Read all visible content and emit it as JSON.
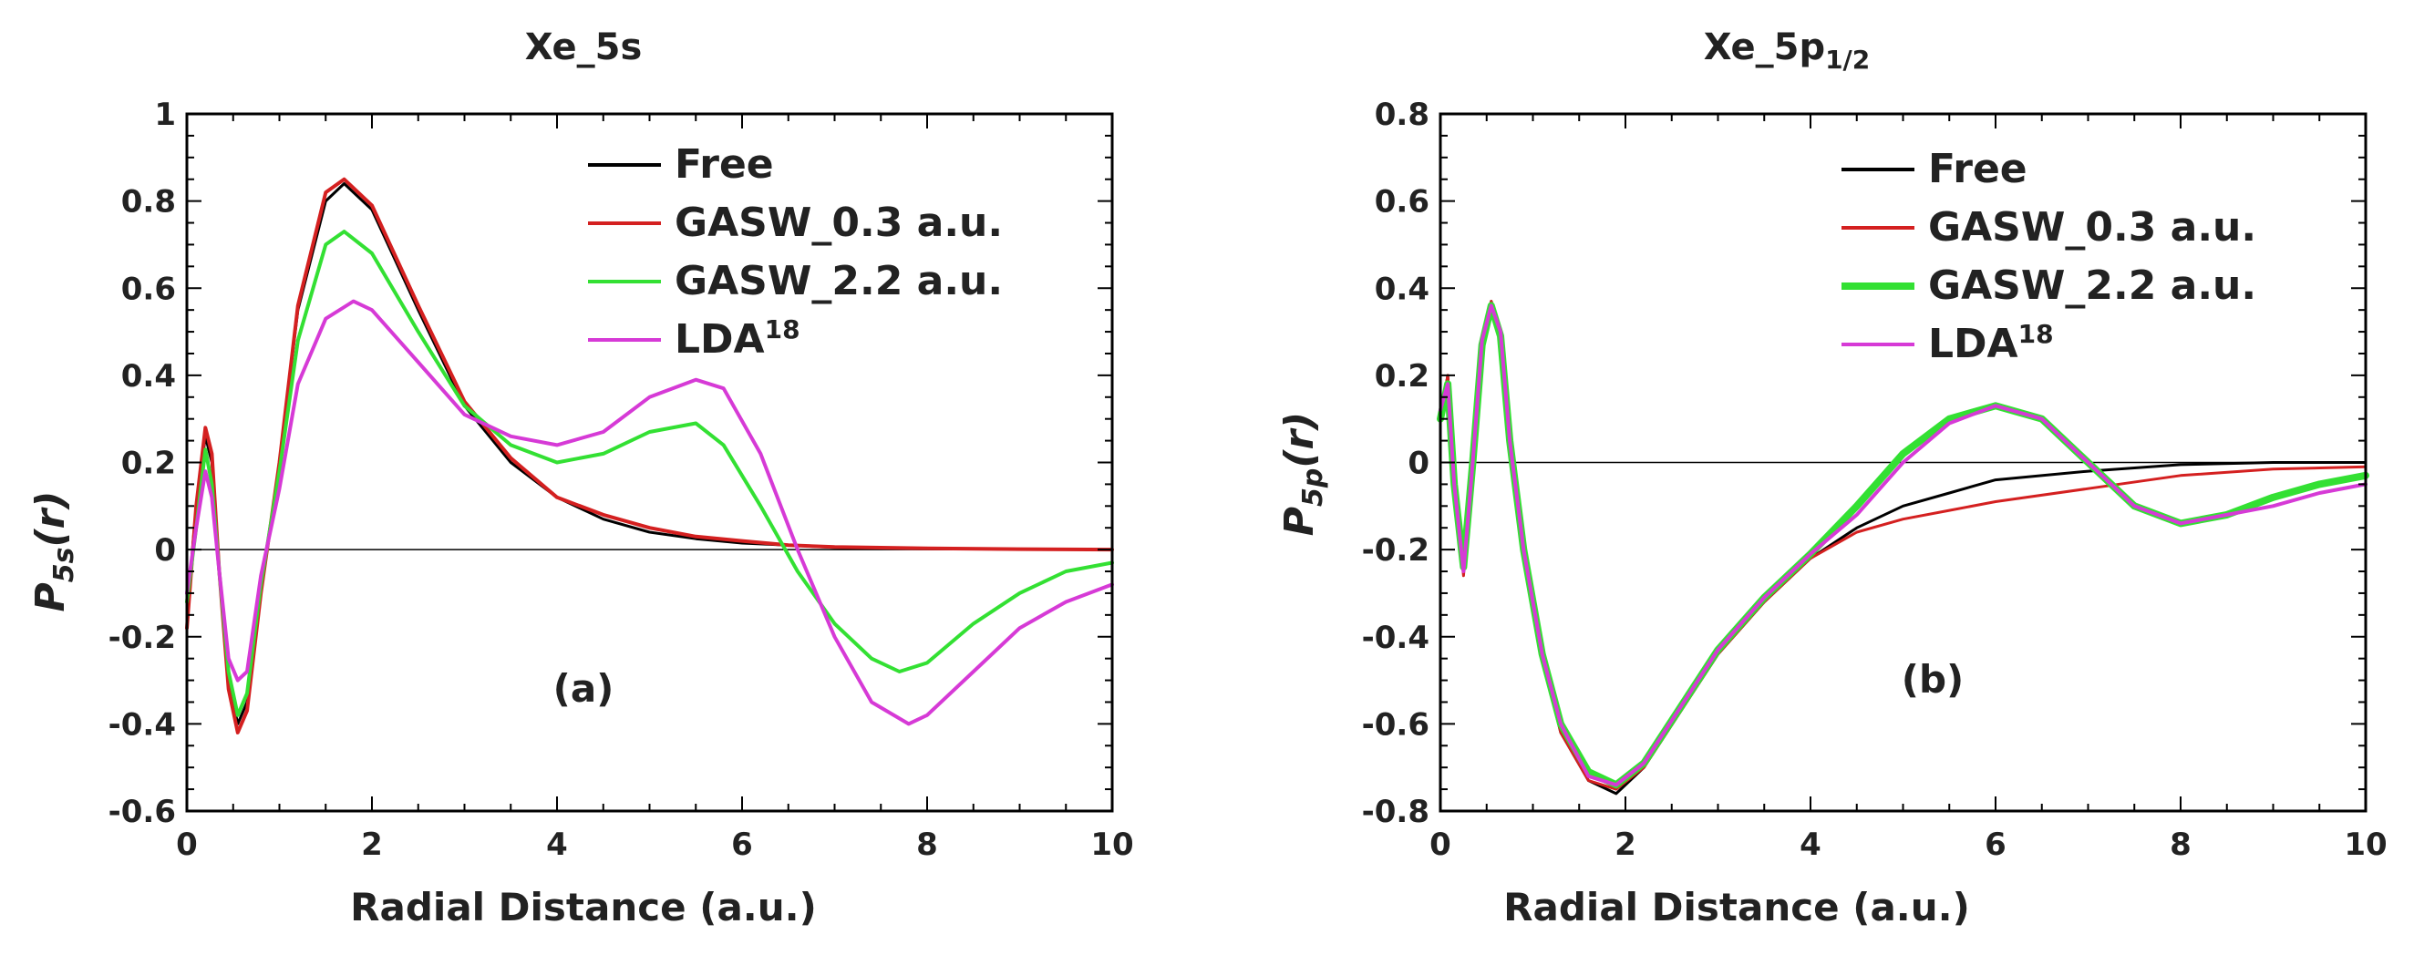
{
  "chart_data": [
    {
      "type": "line",
      "panel_label": "(a)",
      "title_main": "Xe_5s",
      "title_sub": "",
      "xlabel": "Radial Distance (a.u.)",
      "ylabel_main": "P",
      "ylabel_sub": "5s",
      "ylabel_tail": "(r)",
      "xlim": [
        0,
        10
      ],
      "ylim": [
        -0.6,
        1.0
      ],
      "xticks": [
        0,
        2,
        4,
        6,
        8,
        10
      ],
      "yticks": [
        -0.6,
        -0.4,
        -0.2,
        0,
        0.2,
        0.4,
        0.6,
        0.8,
        1
      ],
      "xtick_labels": [
        "0",
        "2",
        "4",
        "6",
        "8",
        "10"
      ],
      "ytick_labels": [
        "-0.6",
        "-0.4",
        "-0.2",
        "0",
        "0.2",
        "0.4",
        "0.6",
        "0.8",
        "1"
      ],
      "legend_position": "top-right",
      "series": [
        {
          "name": "Free",
          "label_main": "Free",
          "label_sup": "",
          "color": "#000000",
          "width": 3,
          "x": [
            0,
            0.1,
            0.2,
            0.27,
            0.35,
            0.45,
            0.55,
            0.65,
            0.8,
            1.0,
            1.2,
            1.5,
            1.7,
            2.0,
            2.5,
            3.0,
            3.5,
            4.0,
            4.5,
            5.0,
            5.5,
            6.0,
            6.5,
            7.0,
            8.0,
            9.0,
            10.0
          ],
          "y": [
            -0.15,
            0.1,
            0.26,
            0.2,
            -0.05,
            -0.3,
            -0.4,
            -0.35,
            -0.1,
            0.2,
            0.55,
            0.8,
            0.84,
            0.78,
            0.55,
            0.33,
            0.2,
            0.12,
            0.07,
            0.04,
            0.025,
            0.015,
            0.01,
            0.005,
            0.002,
            0.001,
            0.0
          ]
        },
        {
          "name": "GASW_0.3 a.u.",
          "label_main": "GASW_0.3 a.u.",
          "label_sup": "",
          "color": "#d42020",
          "width": 4,
          "x": [
            0,
            0.1,
            0.2,
            0.27,
            0.35,
            0.45,
            0.55,
            0.65,
            0.8,
            1.0,
            1.2,
            1.5,
            1.7,
            2.0,
            2.5,
            3.0,
            3.5,
            4.0,
            4.5,
            5.0,
            5.5,
            6.0,
            6.5,
            7.0,
            8.0,
            9.0,
            10.0
          ],
          "y": [
            -0.18,
            0.1,
            0.28,
            0.22,
            -0.05,
            -0.32,
            -0.42,
            -0.37,
            -0.1,
            0.2,
            0.56,
            0.82,
            0.85,
            0.79,
            0.56,
            0.34,
            0.21,
            0.12,
            0.08,
            0.05,
            0.03,
            0.02,
            0.01,
            0.006,
            0.003,
            0.001,
            0.0
          ]
        },
        {
          "name": "GASW_2.2 a.u.",
          "label_main": "GASW_2.2 a.u.",
          "label_sup": "",
          "color": "#33e033",
          "width": 4,
          "x": [
            0,
            0.1,
            0.2,
            0.27,
            0.35,
            0.45,
            0.55,
            0.65,
            0.8,
            1.0,
            1.2,
            1.5,
            1.7,
            2.0,
            2.5,
            3.0,
            3.5,
            4.0,
            4.5,
            5.0,
            5.5,
            5.8,
            6.2,
            6.6,
            7.0,
            7.4,
            7.7,
            8.0,
            8.5,
            9.0,
            9.5,
            10.0
          ],
          "y": [
            -0.12,
            0.05,
            0.23,
            0.15,
            -0.05,
            -0.28,
            -0.38,
            -0.33,
            -0.08,
            0.18,
            0.48,
            0.7,
            0.73,
            0.68,
            0.5,
            0.33,
            0.24,
            0.2,
            0.22,
            0.27,
            0.29,
            0.24,
            0.1,
            -0.05,
            -0.17,
            -0.25,
            -0.28,
            -0.26,
            -0.17,
            -0.1,
            -0.05,
            -0.03
          ]
        },
        {
          "name": "LDA18",
          "label_main": "LDA",
          "label_sup": "18",
          "color": "#d63ad6",
          "width": 4,
          "x": [
            0,
            0.1,
            0.2,
            0.27,
            0.35,
            0.45,
            0.55,
            0.65,
            0.8,
            1.0,
            1.2,
            1.5,
            1.8,
            2.0,
            2.5,
            3.0,
            3.5,
            4.0,
            4.5,
            5.0,
            5.5,
            5.8,
            6.2,
            6.6,
            7.0,
            7.4,
            7.8,
            8.0,
            8.5,
            9.0,
            9.5,
            10.0
          ],
          "y": [
            -0.1,
            0.05,
            0.18,
            0.12,
            -0.05,
            -0.25,
            -0.3,
            -0.28,
            -0.06,
            0.14,
            0.38,
            0.53,
            0.57,
            0.55,
            0.43,
            0.31,
            0.26,
            0.24,
            0.27,
            0.35,
            0.39,
            0.37,
            0.22,
            0.0,
            -0.2,
            -0.35,
            -0.4,
            -0.38,
            -0.28,
            -0.18,
            -0.12,
            -0.08
          ]
        }
      ]
    },
    {
      "type": "line",
      "panel_label": "(b)",
      "title_main": "Xe_5p",
      "title_sub": "1/2",
      "xlabel": "Radial Distance (a.u.)",
      "ylabel_main": "P",
      "ylabel_sub": "5p",
      "ylabel_tail": "(r)",
      "xlim": [
        0,
        10
      ],
      "ylim": [
        -0.8,
        0.8
      ],
      "xticks": [
        0,
        2,
        4,
        6,
        8,
        10
      ],
      "yticks": [
        -0.8,
        -0.6,
        -0.4,
        -0.2,
        0,
        0.2,
        0.4,
        0.6,
        0.8
      ],
      "xtick_labels": [
        "0",
        "2",
        "4",
        "6",
        "8",
        "10"
      ],
      "ytick_labels": [
        "-0.8",
        "-0.6",
        "-0.4",
        "-0.2",
        "0",
        "0.2",
        "0.4",
        "0.6",
        "0.8"
      ],
      "legend_position": "top-right",
      "series": [
        {
          "name": "Free",
          "label_main": "Free",
          "label_sup": "",
          "color": "#000000",
          "width": 3,
          "x": [
            0,
            0.08,
            0.15,
            0.25,
            0.35,
            0.45,
            0.55,
            0.65,
            0.75,
            0.9,
            1.1,
            1.3,
            1.6,
            1.9,
            2.2,
            2.6,
            3.0,
            3.5,
            4.0,
            4.5,
            5.0,
            5.5,
            6.0,
            7.0,
            8.0,
            9.0,
            10.0
          ],
          "y": [
            0.1,
            0.2,
            -0.05,
            -0.25,
            0.0,
            0.28,
            0.37,
            0.3,
            0.05,
            -0.2,
            -0.45,
            -0.62,
            -0.73,
            -0.76,
            -0.7,
            -0.57,
            -0.44,
            -0.32,
            -0.22,
            -0.15,
            -0.1,
            -0.07,
            -0.04,
            -0.02,
            -0.005,
            0.0,
            0.0
          ]
        },
        {
          "name": "GASW_0.3 a.u.",
          "label_main": "GASW_0.3 a.u.",
          "label_sup": "",
          "color": "#d42020",
          "width": 3,
          "x": [
            0,
            0.08,
            0.15,
            0.25,
            0.35,
            0.45,
            0.55,
            0.65,
            0.75,
            0.9,
            1.1,
            1.3,
            1.6,
            1.9,
            2.2,
            2.6,
            3.0,
            3.5,
            4.0,
            4.5,
            5.0,
            5.5,
            6.0,
            7.0,
            8.0,
            9.0,
            10.0
          ],
          "y": [
            0.1,
            0.2,
            -0.05,
            -0.26,
            0.0,
            0.28,
            0.37,
            0.3,
            0.05,
            -0.2,
            -0.45,
            -0.62,
            -0.73,
            -0.75,
            -0.7,
            -0.57,
            -0.44,
            -0.32,
            -0.22,
            -0.16,
            -0.13,
            -0.11,
            -0.09,
            -0.06,
            -0.03,
            -0.015,
            -0.01
          ]
        },
        {
          "name": "GASW_2.2 a.u.",
          "label_main": "GASW_2.2 a.u.",
          "label_sup": "",
          "color": "#33e033",
          "width": 8,
          "x": [
            0,
            0.08,
            0.15,
            0.25,
            0.35,
            0.45,
            0.55,
            0.65,
            0.75,
            0.9,
            1.1,
            1.3,
            1.6,
            1.9,
            2.2,
            2.6,
            3.0,
            3.5,
            4.0,
            4.5,
            5.0,
            5.5,
            6.0,
            6.5,
            7.0,
            7.5,
            8.0,
            8.5,
            9.0,
            9.5,
            10.0
          ],
          "y": [
            0.1,
            0.18,
            -0.05,
            -0.24,
            0.0,
            0.27,
            0.36,
            0.29,
            0.05,
            -0.2,
            -0.44,
            -0.6,
            -0.71,
            -0.74,
            -0.69,
            -0.56,
            -0.43,
            -0.31,
            -0.21,
            -0.1,
            0.02,
            0.1,
            0.13,
            0.1,
            0.0,
            -0.1,
            -0.14,
            -0.12,
            -0.08,
            -0.05,
            -0.03
          ]
        },
        {
          "name": "LDA18",
          "label_main": "LDA",
          "label_sup": "18",
          "color": "#d63ad6",
          "width": 4,
          "x": [
            0,
            0.08,
            0.15,
            0.25,
            0.35,
            0.45,
            0.55,
            0.65,
            0.75,
            0.9,
            1.1,
            1.3,
            1.6,
            1.9,
            2.2,
            2.6,
            3.0,
            3.5,
            4.0,
            4.5,
            5.0,
            5.5,
            6.0,
            6.5,
            7.0,
            7.5,
            8.0,
            8.5,
            9.0,
            9.5,
            10.0
          ],
          "y": [
            0.12,
            0.18,
            -0.05,
            -0.25,
            0.0,
            0.28,
            0.36,
            0.3,
            0.05,
            -0.2,
            -0.44,
            -0.6,
            -0.72,
            -0.74,
            -0.69,
            -0.56,
            -0.43,
            -0.31,
            -0.21,
            -0.12,
            0.0,
            0.09,
            0.13,
            0.1,
            0.0,
            -0.1,
            -0.14,
            -0.12,
            -0.1,
            -0.07,
            -0.05
          ]
        }
      ]
    }
  ]
}
